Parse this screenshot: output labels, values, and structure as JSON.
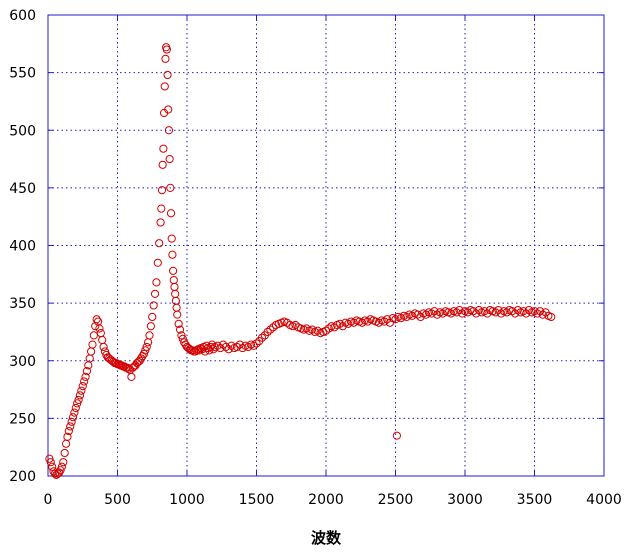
{
  "chart_data": {
    "type": "scatter",
    "title": "",
    "xlabel": "波数",
    "ylabel": "",
    "xlim": [
      0,
      4000
    ],
    "ylim": [
      200,
      600
    ],
    "x_ticks": [
      0,
      500,
      1000,
      1500,
      2000,
      2500,
      3000,
      3500,
      4000
    ],
    "y_ticks": [
      200,
      250,
      300,
      350,
      400,
      450,
      500,
      550,
      600
    ],
    "x_tick_labels": [
      "0",
      "500",
      "1000",
      "1500",
      "2000",
      "2500",
      "3000",
      "3500",
      "4000"
    ],
    "y_tick_labels": [
      "200",
      "250",
      "300",
      "350",
      "400",
      "450",
      "500",
      "550",
      "600"
    ],
    "grid": true,
    "marker": "open-circle",
    "colors": {
      "points": "#d40000",
      "grid": "#1f1fd0",
      "frame": "#1f1fd0"
    },
    "series": [
      {
        "points": [
          [
            10,
            215
          ],
          [
            20,
            212
          ],
          [
            30,
            208
          ],
          [
            40,
            204
          ],
          [
            50,
            202
          ],
          [
            60,
            201
          ],
          [
            70,
            202
          ],
          [
            80,
            203
          ],
          [
            90,
            205
          ],
          [
            100,
            208
          ],
          [
            110,
            212
          ],
          [
            120,
            220
          ],
          [
            130,
            228
          ],
          [
            140,
            234
          ],
          [
            150,
            239
          ],
          [
            160,
            243
          ],
          [
            170,
            247
          ],
          [
            180,
            251
          ],
          [
            190,
            255
          ],
          [
            200,
            259
          ],
          [
            210,
            263
          ],
          [
            220,
            266
          ],
          [
            230,
            270
          ],
          [
            240,
            274
          ],
          [
            250,
            278
          ],
          [
            260,
            282
          ],
          [
            270,
            286
          ],
          [
            280,
            291
          ],
          [
            290,
            296
          ],
          [
            300,
            302
          ],
          [
            310,
            308
          ],
          [
            320,
            314
          ],
          [
            330,
            322
          ],
          [
            340,
            330
          ],
          [
            350,
            336
          ],
          [
            360,
            334
          ],
          [
            370,
            328
          ],
          [
            380,
            324
          ],
          [
            390,
            318
          ],
          [
            400,
            312
          ],
          [
            410,
            308
          ],
          [
            420,
            305
          ],
          [
            430,
            303
          ],
          [
            440,
            302
          ],
          [
            450,
            301
          ],
          [
            460,
            300
          ],
          [
            470,
            299
          ],
          [
            480,
            298
          ],
          [
            490,
            298
          ],
          [
            500,
            297
          ],
          [
            510,
            297
          ],
          [
            520,
            296
          ],
          [
            530,
            296
          ],
          [
            540,
            295
          ],
          [
            550,
            295
          ],
          [
            560,
            294
          ],
          [
            570,
            294
          ],
          [
            580,
            293
          ],
          [
            590,
            292
          ],
          [
            600,
            286
          ],
          [
            610,
            294
          ],
          [
            620,
            295
          ],
          [
            630,
            296
          ],
          [
            640,
            298
          ],
          [
            650,
            299
          ],
          [
            660,
            300
          ],
          [
            670,
            302
          ],
          [
            680,
            304
          ],
          [
            690,
            306
          ],
          [
            700,
            309
          ],
          [
            710,
            312
          ],
          [
            720,
            316
          ],
          [
            730,
            322
          ],
          [
            740,
            330
          ],
          [
            750,
            338
          ],
          [
            760,
            348
          ],
          [
            770,
            358
          ],
          [
            780,
            368
          ],
          [
            790,
            385
          ],
          [
            800,
            402
          ],
          [
            810,
            420
          ],
          [
            815,
            432
          ],
          [
            820,
            448
          ],
          [
            825,
            470
          ],
          [
            830,
            484
          ],
          [
            835,
            515
          ],
          [
            840,
            538
          ],
          [
            845,
            562
          ],
          [
            850,
            572
          ],
          [
            855,
            570
          ],
          [
            860,
            548
          ],
          [
            865,
            518
          ],
          [
            870,
            500
          ],
          [
            875,
            475
          ],
          [
            880,
            450
          ],
          [
            885,
            428
          ],
          [
            890,
            406
          ],
          [
            895,
            392
          ],
          [
            900,
            378
          ],
          [
            905,
            370
          ],
          [
            910,
            364
          ],
          [
            915,
            358
          ],
          [
            920,
            352
          ],
          [
            925,
            346
          ],
          [
            930,
            340
          ],
          [
            940,
            332
          ],
          [
            950,
            327
          ],
          [
            960,
            322
          ],
          [
            970,
            319
          ],
          [
            980,
            316
          ],
          [
            990,
            314
          ],
          [
            1000,
            312
          ],
          [
            1010,
            311
          ],
          [
            1020,
            310
          ],
          [
            1030,
            309
          ],
          [
            1040,
            309
          ],
          [
            1050,
            308
          ],
          [
            1060,
            308
          ],
          [
            1070,
            309
          ],
          [
            1080,
            310
          ],
          [
            1090,
            309
          ],
          [
            1100,
            311
          ],
          [
            1110,
            310
          ],
          [
            1120,
            312
          ],
          [
            1130,
            308
          ],
          [
            1140,
            313
          ],
          [
            1150,
            311
          ],
          [
            1160,
            309
          ],
          [
            1170,
            312
          ],
          [
            1180,
            314
          ],
          [
            1190,
            310
          ],
          [
            1200,
            312
          ],
          [
            1220,
            313
          ],
          [
            1240,
            311
          ],
          [
            1260,
            314
          ],
          [
            1280,
            312
          ],
          [
            1300,
            310
          ],
          [
            1320,
            313
          ],
          [
            1340,
            311
          ],
          [
            1360,
            312
          ],
          [
            1380,
            314
          ],
          [
            1400,
            311
          ],
          [
            1420,
            313
          ],
          [
            1440,
            312
          ],
          [
            1460,
            314
          ],
          [
            1480,
            313
          ],
          [
            1500,
            315
          ],
          [
            1520,
            317
          ],
          [
            1540,
            320
          ],
          [
            1560,
            322
          ],
          [
            1580,
            325
          ],
          [
            1600,
            327
          ],
          [
            1620,
            329
          ],
          [
            1640,
            331
          ],
          [
            1660,
            332
          ],
          [
            1680,
            333
          ],
          [
            1700,
            334
          ],
          [
            1720,
            333
          ],
          [
            1740,
            331
          ],
          [
            1760,
            330
          ],
          [
            1780,
            331
          ],
          [
            1800,
            329
          ],
          [
            1820,
            328
          ],
          [
            1840,
            327
          ],
          [
            1860,
            328
          ],
          [
            1880,
            326
          ],
          [
            1900,
            327
          ],
          [
            1920,
            325
          ],
          [
            1940,
            326
          ],
          [
            1960,
            324
          ],
          [
            1980,
            325
          ],
          [
            2000,
            326
          ],
          [
            2020,
            328
          ],
          [
            2040,
            330
          ],
          [
            2060,
            329
          ],
          [
            2080,
            331
          ],
          [
            2100,
            332
          ],
          [
            2120,
            330
          ],
          [
            2140,
            333
          ],
          [
            2160,
            332
          ],
          [
            2180,
            334
          ],
          [
            2200,
            333
          ],
          [
            2220,
            335
          ],
          [
            2240,
            334
          ],
          [
            2260,
            333
          ],
          [
            2280,
            335
          ],
          [
            2300,
            334
          ],
          [
            2320,
            336
          ],
          [
            2340,
            335
          ],
          [
            2360,
            334
          ],
          [
            2380,
            333
          ],
          [
            2400,
            335
          ],
          [
            2420,
            334
          ],
          [
            2440,
            336
          ],
          [
            2460,
            333
          ],
          [
            2480,
            337
          ],
          [
            2500,
            336
          ],
          [
            2510,
            235
          ],
          [
            2520,
            338
          ],
          [
            2540,
            337
          ],
          [
            2560,
            339
          ],
          [
            2580,
            338
          ],
          [
            2600,
            340
          ],
          [
            2620,
            339
          ],
          [
            2640,
            341
          ],
          [
            2660,
            340
          ],
          [
            2680,
            338
          ],
          [
            2700,
            341
          ],
          [
            2720,
            340
          ],
          [
            2740,
            342
          ],
          [
            2760,
            341
          ],
          [
            2780,
            343
          ],
          [
            2800,
            340
          ],
          [
            2820,
            342
          ],
          [
            2840,
            341
          ],
          [
            2860,
            343
          ],
          [
            2880,
            342
          ],
          [
            2900,
            341
          ],
          [
            2920,
            343
          ],
          [
            2940,
            342
          ],
          [
            2960,
            344
          ],
          [
            2980,
            341
          ],
          [
            3000,
            343
          ],
          [
            3020,
            342
          ],
          [
            3040,
            344
          ],
          [
            3060,
            343
          ],
          [
            3080,
            341
          ],
          [
            3100,
            344
          ],
          [
            3120,
            342
          ],
          [
            3140,
            343
          ],
          [
            3160,
            341
          ],
          [
            3180,
            344
          ],
          [
            3200,
            343
          ],
          [
            3220,
            342
          ],
          [
            3240,
            344
          ],
          [
            3260,
            341
          ],
          [
            3280,
            343
          ],
          [
            3300,
            342
          ],
          [
            3320,
            344
          ],
          [
            3340,
            343
          ],
          [
            3360,
            341
          ],
          [
            3380,
            344
          ],
          [
            3400,
            342
          ],
          [
            3420,
            343
          ],
          [
            3440,
            341
          ],
          [
            3460,
            344
          ],
          [
            3480,
            342
          ],
          [
            3500,
            343
          ],
          [
            3520,
            341
          ],
          [
            3540,
            343
          ],
          [
            3560,
            340
          ],
          [
            3580,
            342
          ],
          [
            3600,
            339
          ],
          [
            3620,
            338
          ]
        ]
      }
    ]
  }
}
